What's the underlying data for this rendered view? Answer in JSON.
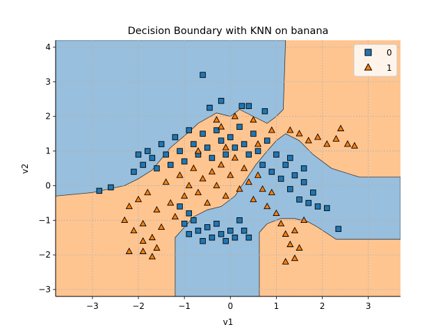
{
  "chart_data": {
    "type": "scatter",
    "title": "Decision Boundary with KNN on banana",
    "xlabel": "v1",
    "ylabel": "v2",
    "xlim": [
      -3.8,
      3.7
    ],
    "ylim": [
      -3.2,
      4.2
    ],
    "xticks": [
      -3,
      -2,
      -1,
      0,
      1,
      2,
      3
    ],
    "yticks": [
      -3,
      -2,
      -1,
      0,
      1,
      2,
      3,
      4
    ],
    "grid": true,
    "legend_position": "top-right",
    "colors": {
      "class0_fill": "#1f77b4",
      "class1_fill": "#ff7f0e",
      "region0": "#98bfdd",
      "region1": "#ffc591",
      "boundary": "#333333",
      "grid": "#b0b0b0"
    },
    "series": [
      {
        "name": "0",
        "marker": "square"
      },
      {
        "name": "1",
        "marker": "triangle"
      }
    ],
    "decision_regions": {
      "class_0_region": [
        [
          -3.8,
          4.2
        ],
        [
          1.2,
          4.2
        ],
        [
          1.15,
          2.2
        ],
        [
          1.0,
          2.0
        ],
        [
          0.8,
          1.8
        ],
        [
          0.5,
          2.0
        ],
        [
          0.2,
          2.2
        ],
        [
          0.0,
          2.0
        ],
        [
          -0.3,
          2.1
        ],
        [
          -0.7,
          1.8
        ],
        [
          -0.9,
          1.55
        ],
        [
          -1.3,
          1.1
        ],
        [
          -1.7,
          0.45
        ],
        [
          -2.0,
          0.2
        ],
        [
          -2.3,
          0.0
        ],
        [
          -3.0,
          -0.2
        ],
        [
          -3.8,
          -0.3
        ],
        [
          -3.8,
          4.2
        ]
      ],
      "class_0_region_bottom": [
        [
          -1.2,
          -3.2
        ],
        [
          0.63,
          -3.2
        ],
        [
          0.63,
          -1.35
        ],
        [
          0.8,
          -1.1
        ],
        [
          1.1,
          -0.95
        ],
        [
          1.4,
          -0.95
        ],
        [
          1.7,
          -1.05
        ],
        [
          1.9,
          -1.2
        ],
        [
          2.3,
          -1.55
        ],
        [
          3.7,
          -1.55
        ],
        [
          3.7,
          0.25
        ],
        [
          2.8,
          0.25
        ],
        [
          2.2,
          0.5
        ],
        [
          1.8,
          0.9
        ],
        [
          1.5,
          1.3
        ],
        [
          1.2,
          1.5
        ],
        [
          1.0,
          1.3
        ],
        [
          0.8,
          1.0
        ],
        [
          0.55,
          0.6
        ],
        [
          0.35,
          0.2
        ],
        [
          0.1,
          -0.3
        ],
        [
          -0.2,
          -0.6
        ],
        [
          -0.5,
          -0.7
        ],
        [
          -0.8,
          -0.9
        ],
        [
          -1.0,
          -1.2
        ],
        [
          -1.2,
          -1.5
        ],
        [
          -1.2,
          -3.2
        ]
      ]
    },
    "points_class0": [
      [
        -2.85,
        -0.15
      ],
      [
        -2.6,
        -0.05
      ],
      [
        -0.6,
        3.2
      ],
      [
        -0.45,
        2.25
      ],
      [
        -0.2,
        2.45
      ],
      [
        0.25,
        2.3
      ],
      [
        0.4,
        2.3
      ],
      [
        0.75,
        2.15
      ],
      [
        -2.1,
        0.4
      ],
      [
        -2.0,
        0.9
      ],
      [
        -1.9,
        0.6
      ],
      [
        -1.8,
        1.0
      ],
      [
        -1.7,
        0.8
      ],
      [
        -1.6,
        0.5
      ],
      [
        -1.5,
        1.2
      ],
      [
        -1.4,
        0.9
      ],
      [
        -1.3,
        0.6
      ],
      [
        -1.2,
        1.4
      ],
      [
        -1.1,
        1.0
      ],
      [
        -1.0,
        0.7
      ],
      [
        -0.9,
        1.6
      ],
      [
        -0.8,
        1.2
      ],
      [
        -0.7,
        0.9
      ],
      [
        -0.6,
        1.5
      ],
      [
        -0.5,
        1.1
      ],
      [
        -0.4,
        0.8
      ],
      [
        -0.3,
        1.6
      ],
      [
        -0.2,
        1.3
      ],
      [
        -0.1,
        0.9
      ],
      [
        0.0,
        1.4
      ],
      [
        0.1,
        1.1
      ],
      [
        0.2,
        1.7
      ],
      [
        0.3,
        1.2
      ],
      [
        0.4,
        0.9
      ],
      [
        0.5,
        1.5
      ],
      [
        0.6,
        1.0
      ],
      [
        0.7,
        0.6
      ],
      [
        0.8,
        1.3
      ],
      [
        0.9,
        0.4
      ],
      [
        1.0,
        0.9
      ],
      [
        1.1,
        0.2
      ],
      [
        1.2,
        0.6
      ],
      [
        1.3,
        -0.1
      ],
      [
        1.4,
        0.3
      ],
      [
        1.5,
        -0.4
      ],
      [
        1.6,
        0.1
      ],
      [
        1.7,
        -0.5
      ],
      [
        1.8,
        -0.2
      ],
      [
        1.9,
        -0.6
      ],
      [
        2.1,
        -0.65
      ],
      [
        2.35,
        -1.25
      ],
      [
        -1.0,
        -1.1
      ],
      [
        -0.9,
        -1.4
      ],
      [
        -0.8,
        -1.0
      ],
      [
        -0.7,
        -1.3
      ],
      [
        -0.6,
        -1.6
      ],
      [
        -0.5,
        -1.2
      ],
      [
        -0.4,
        -1.5
      ],
      [
        -0.3,
        -1.1
      ],
      [
        -0.2,
        -1.4
      ],
      [
        -0.1,
        -1.6
      ],
      [
        0.0,
        -1.3
      ],
      [
        0.1,
        -1.5
      ],
      [
        0.2,
        -1.0
      ],
      [
        0.3,
        -1.3
      ],
      [
        0.4,
        -1.5
      ],
      [
        -1.1,
        -0.6
      ],
      [
        -0.9,
        -0.8
      ],
      [
        1.6,
        0.5
      ],
      [
        1.3,
        0.8
      ]
    ],
    "points_class1": [
      [
        -2.2,
        -1.9
      ],
      [
        -1.9,
        -1.9
      ],
      [
        -1.7,
        -2.05
      ],
      [
        1.2,
        -2.2
      ],
      [
        1.4,
        -2.1
      ],
      [
        -2.3,
        -1.0
      ],
      [
        -2.2,
        -0.6
      ],
      [
        -2.0,
        -0.4
      ],
      [
        -1.9,
        -1.1
      ],
      [
        -1.8,
        -0.2
      ],
      [
        -1.7,
        -1.5
      ],
      [
        -1.6,
        -0.7
      ],
      [
        -1.5,
        -1.2
      ],
      [
        -1.4,
        0.1
      ],
      [
        -1.3,
        -0.5
      ],
      [
        -1.2,
        -0.9
      ],
      [
        -1.1,
        0.3
      ],
      [
        -1.0,
        -0.3
      ],
      [
        -0.9,
        0.0
      ],
      [
        -0.8,
        0.5
      ],
      [
        -0.7,
        -0.2
      ],
      [
        -0.6,
        0.2
      ],
      [
        -0.5,
        -0.5
      ],
      [
        -0.4,
        0.4
      ],
      [
        -0.3,
        0.0
      ],
      [
        -0.2,
        0.6
      ],
      [
        -0.1,
        -0.3
      ],
      [
        0.0,
        0.3
      ],
      [
        0.1,
        0.8
      ],
      [
        0.2,
        -0.1
      ],
      [
        0.3,
        0.5
      ],
      [
        0.4,
        0.1
      ],
      [
        0.5,
        -0.4
      ],
      [
        0.6,
        0.3
      ],
      [
        0.7,
        -0.1
      ],
      [
        0.8,
        -0.6
      ],
      [
        0.9,
        -0.2
      ],
      [
        1.0,
        -0.8
      ],
      [
        1.1,
        -1.1
      ],
      [
        1.2,
        -1.4
      ],
      [
        1.3,
        -1.7
      ],
      [
        1.4,
        -1.3
      ],
      [
        1.5,
        -1.8
      ],
      [
        1.6,
        -1.0
      ],
      [
        0.1,
        2.0
      ],
      [
        -0.3,
        1.9
      ],
      [
        0.5,
        1.9
      ],
      [
        0.9,
        1.6
      ],
      [
        -0.2,
        1.7
      ],
      [
        1.3,
        1.6
      ],
      [
        1.5,
        1.5
      ],
      [
        1.7,
        1.3
      ],
      [
        1.9,
        1.4
      ],
      [
        2.1,
        1.2
      ],
      [
        2.3,
        1.35
      ],
      [
        2.4,
        1.65
      ],
      [
        2.55,
        1.2
      ],
      [
        2.7,
        1.15
      ],
      [
        -1.9,
        -1.6
      ],
      [
        -1.6,
        -1.8
      ],
      [
        -2.1,
        -1.3
      ],
      [
        -0.1,
        1.1
      ],
      [
        0.6,
        1.2
      ],
      [
        -0.7,
        1.0
      ]
    ]
  }
}
